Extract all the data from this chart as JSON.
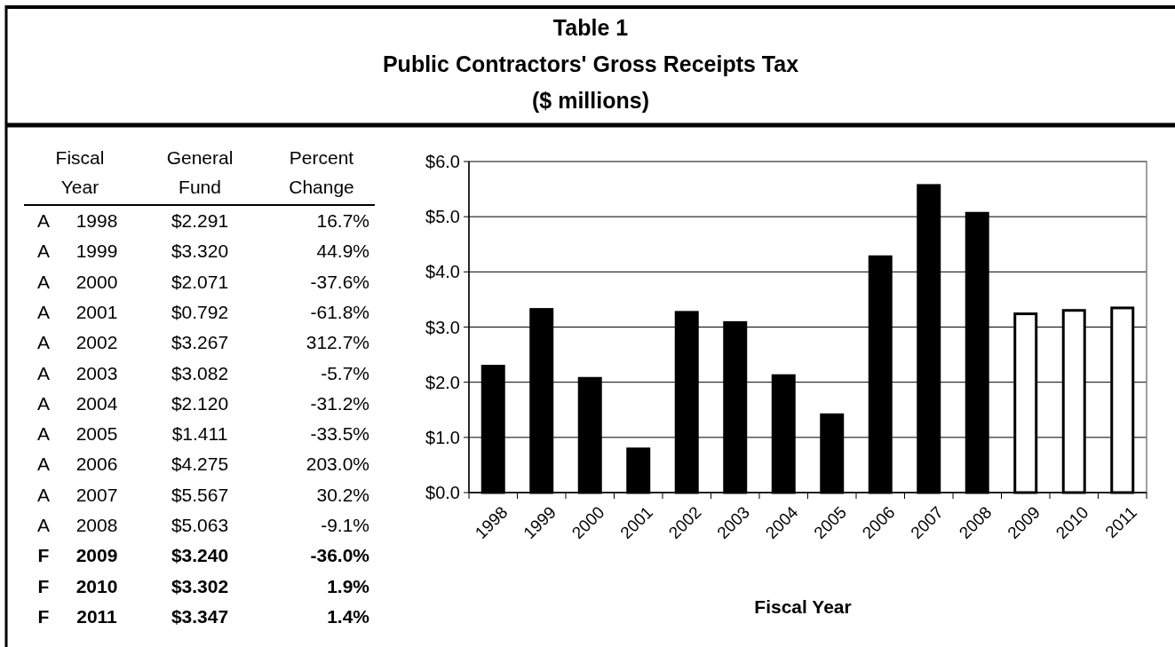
{
  "chart_data": {
    "type": "bar",
    "title": "Table 1\nPublic Contractors' Gross Receipts Tax",
    "subtitle": "($ millions)",
    "xlabel": "Fiscal Year",
    "categories": [
      "1998",
      "1999",
      "2000",
      "2001",
      "2002",
      "2003",
      "2004",
      "2005",
      "2006",
      "2007",
      "2008",
      "2009",
      "2010",
      "2011"
    ],
    "values": [
      2.291,
      3.32,
      2.071,
      0.792,
      3.267,
      3.082,
      2.12,
      1.411,
      4.275,
      5.567,
      5.063,
      3.24,
      3.302,
      3.347
    ],
    "colors": [
      "#000000",
      "#000000",
      "#000000",
      "#000000",
      "#000000",
      "#000000",
      "#000000",
      "#000000",
      "#000000",
      "#000000",
      "#000000",
      "#ffffff",
      "#ffffff",
      "#ffffff"
    ],
    "ylim": [
      0,
      6
    ],
    "yticks": [
      {
        "value": 0,
        "label": "$0.0"
      },
      {
        "value": 1,
        "label": "$1.0"
      },
      {
        "value": 2,
        "label": "$2.0"
      },
      {
        "value": 3,
        "label": "$3.0"
      },
      {
        "value": 4,
        "label": "$4.0"
      },
      {
        "value": 5,
        "label": "$5.0"
      },
      {
        "value": 6,
        "label": "$6.0"
      }
    ],
    "grid": "y",
    "annotations": [
      "Fiscal\nYear",
      "General\nFund",
      "Percent\nChange",
      "A",
      "A",
      "A",
      "A",
      "A",
      "A",
      "A",
      "A",
      "A",
      "A",
      "A",
      "F",
      "F",
      "F",
      "$2.291",
      "$3.320",
      "$2.071",
      "$0.792",
      "$3.267",
      "$3.082",
      "$2.120",
      "$1.411",
      "$4.275",
      "$5.567",
      "$5.063",
      "$3.240",
      "$3.302",
      "$3.347",
      "16.7%",
      "44.9%",
      "-37.6%",
      "-61.8%",
      "312.7%",
      "-5.7%",
      "-31.2%",
      "-33.5%",
      "203.0%",
      "30.2%",
      "-9.1%",
      "-36.0%",
      "1.9%",
      "1.4%"
    ]
  }
}
